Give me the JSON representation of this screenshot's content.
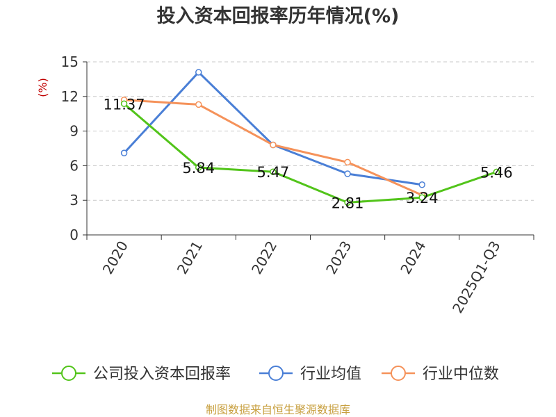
{
  "chart_data": {
    "type": "line",
    "title": "投入资本回报率历年情况(%)",
    "ylabel": "(%)",
    "xlabel": "",
    "categories": [
      "2020",
      "2021",
      "2022",
      "2023",
      "2024",
      "2025Q1-Q3"
    ],
    "yticks": [
      0,
      3,
      6,
      9,
      12,
      15
    ],
    "ylim": [
      0,
      15
    ],
    "grid": true,
    "legend_position": "bottom",
    "series": [
      {
        "name": "公司投入资本回报率",
        "color": "#52c41a",
        "values": [
          11.37,
          5.84,
          5.47,
          2.81,
          3.24,
          5.46
        ],
        "labels": [
          "11.37",
          "5.84",
          "5.47",
          "2.81",
          "3.24",
          "5.46"
        ]
      },
      {
        "name": "行业均值",
        "color": "#4a7fd6",
        "values": [
          7.1,
          14.1,
          7.8,
          5.3,
          4.35,
          null
        ]
      },
      {
        "name": "行业中位数",
        "color": "#f5925a",
        "values": [
          11.7,
          11.3,
          7.8,
          6.3,
          3.45,
          null
        ]
      }
    ],
    "source": "制图数据来自恒生聚源数据库"
  }
}
